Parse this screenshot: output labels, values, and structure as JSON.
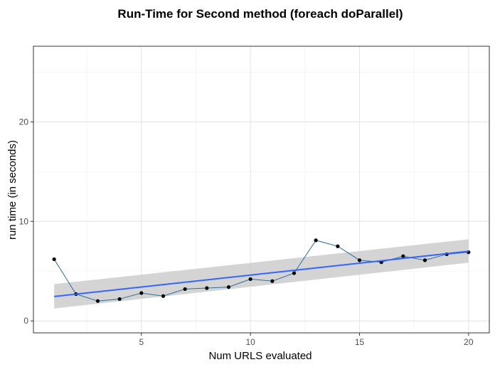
{
  "chart_data": {
    "type": "line",
    "title": "Run-Time for Second method (foreach doParallel)",
    "xlabel": "Num URLS evaluated",
    "ylabel": "run time (in seconds)",
    "xlim": [
      0.05,
      20.95
    ],
    "ylim": [
      -1.2,
      27.6
    ],
    "x_ticks": [
      5,
      10,
      15,
      20
    ],
    "y_ticks": [
      0,
      10,
      20
    ],
    "x_tick_labels": [
      "5",
      "10",
      "15",
      "20"
    ],
    "y_tick_labels": [
      "0",
      "10",
      "20"
    ],
    "grid": true,
    "legend": "none",
    "series": [
      {
        "x": [
          1,
          2,
          3,
          4,
          5,
          6,
          7,
          8,
          9,
          10,
          11,
          12,
          13,
          14,
          15,
          16,
          17,
          18,
          19,
          20
        ],
        "values": [
          6.2,
          2.7,
          2.0,
          2.2,
          2.8,
          2.5,
          3.2,
          3.3,
          3.4,
          4.2,
          4.0,
          4.8,
          8.1,
          7.5,
          6.1,
          5.9,
          6.5,
          6.1,
          6.7,
          6.9
        ]
      }
    ],
    "smooth": {
      "method": "linear",
      "x": [
        1,
        20
      ],
      "fit": [
        2.45,
        7.0
      ],
      "ci_lower": [
        1.25,
        5.85
      ],
      "ci_upper": [
        3.7,
        8.2
      ]
    },
    "colors": {
      "panel_border": "#333333",
      "grid_major": "#e5e5e5",
      "grid_minor": "#f2f2f2",
      "series_line": "#2a6e9e",
      "point": "#000000",
      "smooth_line": "#3366ff",
      "ribbon": "#cccccc"
    }
  }
}
